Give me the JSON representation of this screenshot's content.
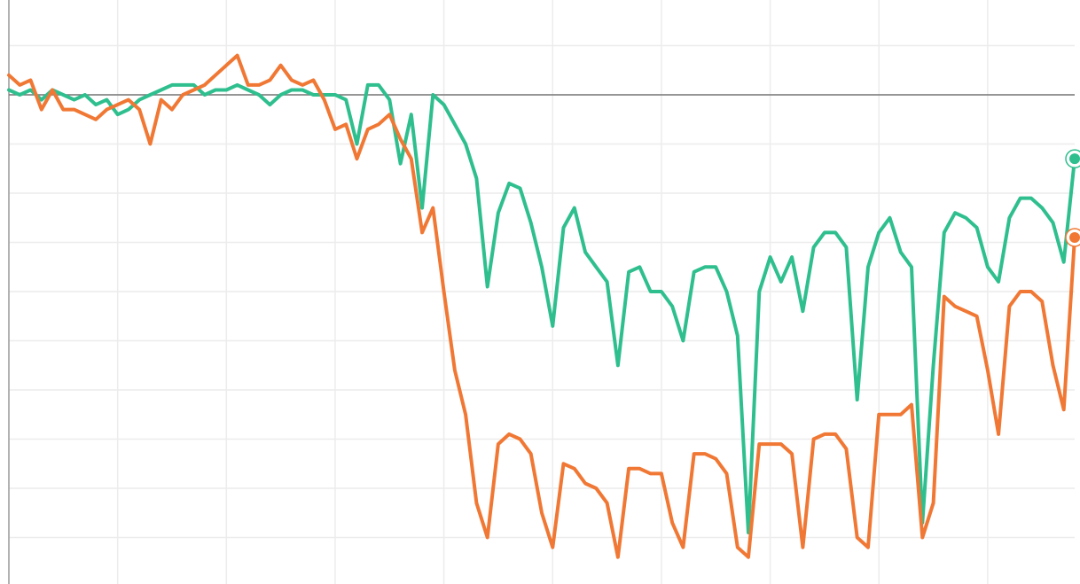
{
  "chart_data": {
    "type": "line",
    "xlim": [
      0,
      98
    ],
    "xticks": [
      10,
      20,
      30,
      40,
      50,
      60,
      70,
      80,
      90
    ],
    "ylim": [
      0,
      120
    ],
    "yticks": [
      10,
      20,
      30,
      40,
      50,
      60,
      70,
      80,
      90,
      100,
      110
    ],
    "grid": true,
    "reference_line": 100,
    "series": [
      {
        "name": null,
        "color": "#2fbf8f",
        "values": [
          101,
          100,
          101,
          99,
          101,
          100,
          99,
          100,
          98,
          99,
          96,
          97,
          99,
          100,
          101,
          102,
          102,
          102,
          100,
          101,
          101,
          102,
          101,
          100,
          98,
          100,
          101,
          101,
          100,
          100,
          100,
          99,
          90,
          102,
          102,
          99,
          86,
          96,
          77,
          100,
          98,
          94,
          90,
          83,
          61,
          76,
          82,
          81,
          74,
          65,
          53,
          73,
          77,
          68,
          65,
          62,
          45,
          64,
          65,
          60,
          60,
          57,
          50,
          64,
          65,
          65,
          60,
          51,
          11,
          60,
          67,
          62,
          67,
          56,
          69,
          72,
          72,
          69,
          38,
          65,
          72,
          75,
          68,
          65,
          13,
          45,
          72,
          76,
          75,
          73,
          65,
          62,
          75,
          79,
          79,
          77,
          74,
          66,
          87
        ]
      },
      {
        "name": null,
        "color": "#f07834",
        "values": [
          104,
          102,
          103,
          97,
          101,
          97,
          97,
          96,
          95,
          97,
          98,
          99,
          97,
          90,
          99,
          97,
          100,
          101,
          102,
          104,
          106,
          108,
          102,
          102,
          103,
          106,
          103,
          102,
          103,
          99,
          93,
          94,
          87,
          93,
          94,
          96,
          91,
          87,
          72,
          77,
          60,
          44,
          35,
          17,
          10,
          29,
          31,
          30,
          27,
          15,
          8,
          25,
          24,
          21,
          20,
          17,
          6,
          24,
          24,
          23,
          23,
          13,
          8,
          27,
          27,
          26,
          23,
          8,
          6,
          29,
          29,
          29,
          27,
          8,
          30,
          31,
          31,
          28,
          10,
          8,
          35,
          35,
          35,
          37,
          10,
          17,
          59,
          57,
          56,
          55,
          44,
          31,
          57,
          60,
          60,
          58,
          45,
          36,
          71
        ]
      }
    ]
  }
}
